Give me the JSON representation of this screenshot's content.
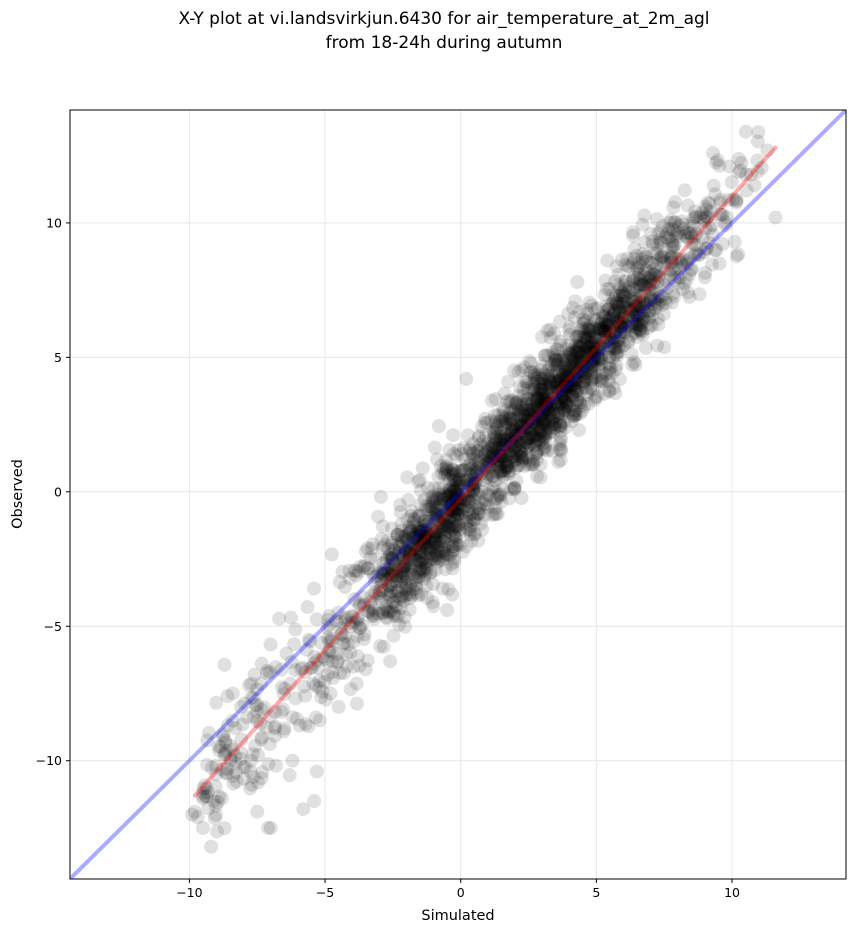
{
  "chart_data": {
    "type": "scatter",
    "title_line1": "X-Y plot at vi.landsvirkjun.6430 for air_temperature_at_2m_agl",
    "title_line2": "from 18-24h during autumn",
    "xlabel": "Simulated",
    "ylabel": "Observed",
    "xlim": [
      -14.4,
      14.2
    ],
    "ylim": [
      -14.4,
      14.2
    ],
    "xticks": [
      -10,
      -5,
      0,
      5,
      10
    ],
    "yticks": [
      -10,
      -5,
      0,
      5,
      10
    ],
    "xtick_labels": [
      "−10",
      "−5",
      "0",
      "5",
      "10"
    ],
    "ytick_labels": [
      "−10",
      "−5",
      "0",
      "5",
      "10"
    ],
    "grid": true,
    "point_color": "#000000",
    "point_alpha": 0.12,
    "identity_line": {
      "color": "#0000ff",
      "x": [
        -14.4,
        14.2
      ],
      "y": [
        -14.4,
        14.2
      ]
    },
    "fit_line": {
      "color": "#ff0000",
      "x": [
        -9.8,
        11.6
      ],
      "y": [
        -11.3,
        12.8
      ]
    },
    "approx_point_count": 2400,
    "notable_points": [
      [
        -9.9,
        -12.0
      ],
      [
        -9.7,
        -12.1
      ],
      [
        -9.5,
        -12.5
      ],
      [
        -9.2,
        -13.2
      ],
      [
        -9.8,
        -11.9
      ],
      [
        -9.5,
        -11.4
      ],
      [
        -9.1,
        -11.5
      ],
      [
        -8.8,
        -11.4
      ],
      [
        -8.6,
        -10.3
      ],
      [
        -8.4,
        -9.6
      ],
      [
        -8.3,
        -10.1
      ],
      [
        -8.6,
        -7.6
      ],
      [
        -8.4,
        -7.5
      ],
      [
        -8.1,
        -8.0
      ],
      [
        -7.8,
        -7.2
      ],
      [
        -7.6,
        -6.8
      ],
      [
        -7.7,
        -10.9
      ],
      [
        -7.1,
        -12.5
      ],
      [
        -7.0,
        -12.5
      ],
      [
        -6.5,
        -8.8
      ],
      [
        -6.2,
        -10.0
      ],
      [
        -5.8,
        -11.8
      ],
      [
        -5.4,
        -11.5
      ],
      [
        -5.3,
        -10.4
      ],
      [
        -5.2,
        -8.5
      ],
      [
        -4.8,
        -7.5
      ],
      [
        -4.5,
        -8.0
      ],
      [
        -3.5,
        -6.6
      ],
      [
        -2.6,
        -6.3
      ],
      [
        -0.5,
        -4.4
      ],
      [
        0.2,
        4.2
      ],
      [
        3.2,
        6.0
      ],
      [
        4.3,
        7.8
      ],
      [
        5.4,
        8.6
      ],
      [
        9.3,
        12.6
      ],
      [
        9.9,
        12.1
      ],
      [
        10.7,
        11.8
      ],
      [
        11.3,
        12.7
      ],
      [
        11.6,
        10.2
      ],
      [
        10.1,
        9.3
      ]
    ]
  }
}
